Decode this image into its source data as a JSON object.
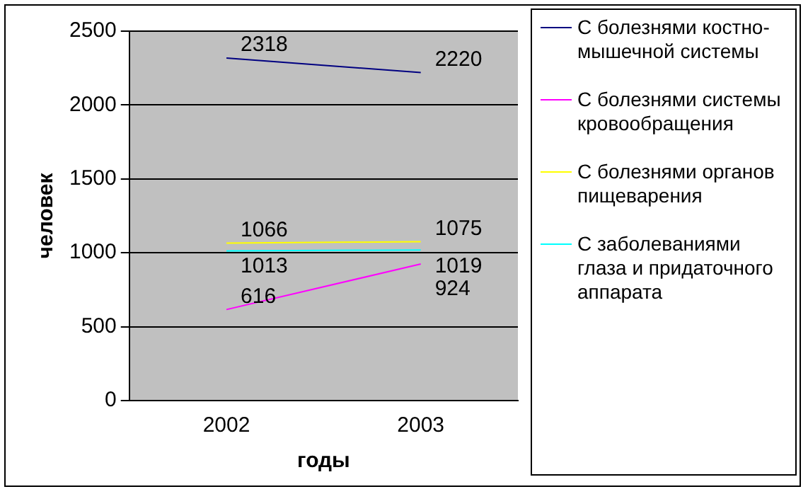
{
  "chart_data": {
    "type": "line",
    "xlabel": "годы",
    "ylabel": "человек",
    "categories": [
      "2002",
      "2003"
    ],
    "series": [
      {
        "name": "С болезнями костно-мышечной системы",
        "color": "#000080",
        "values": [
          2318,
          2220
        ]
      },
      {
        "name": "С болезнями системы кровообращения",
        "color": "#ff00ff",
        "values": [
          616,
          924
        ]
      },
      {
        "name": "С болезнями органов пищеварения",
        "color": "#ffff00",
        "values": [
          1066,
          1075
        ]
      },
      {
        "name": "С заболеваниями глаза и придаточного аппарата",
        "color": "#00ffff",
        "values": [
          1013,
          1019
        ]
      }
    ],
    "ylim": [
      0,
      2500
    ],
    "yticks": [
      0,
      500,
      1000,
      1500,
      2000,
      2500
    ],
    "grid": "y",
    "legend": "right",
    "data_labels": true,
    "marker": "none"
  }
}
